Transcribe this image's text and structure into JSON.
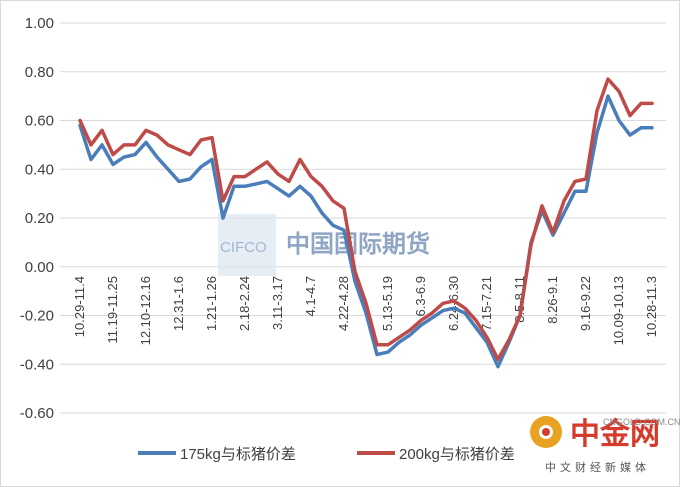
{
  "chart_data": {
    "type": "line",
    "title": "",
    "xlabel": "",
    "ylabel": "",
    "ylim": [
      -0.6,
      1.0
    ],
    "y_ticks": [
      "1.00",
      "0.80",
      "0.60",
      "0.40",
      "0.20",
      "0.00",
      "-0.20",
      "-0.40",
      "-0.60"
    ],
    "x_tick_labels": [
      "10.29-11.4",
      "11.19-11.25",
      "12.10-12.16",
      "12.31-1.6",
      "1.21-1.26",
      "2.18-2.24",
      "3.11-3.17",
      "4.1-4.7",
      "4.22-4.28",
      "5.13-5.19",
      "6.3-6.9",
      "6.24-6.30",
      "7.15-7.21",
      "8.5-8.11",
      "8.26-9.1",
      "9.16-9.22",
      "10.09-10.13",
      "10.28-11.3"
    ],
    "n_points": 53,
    "legend_position": "bottom",
    "series": [
      {
        "name": "175kg与标猪价差",
        "color": "#4a7ebb",
        "values": [
          0.58,
          0.44,
          0.5,
          0.42,
          0.45,
          0.46,
          0.51,
          0.45,
          0.4,
          0.35,
          0.36,
          0.41,
          0.44,
          0.2,
          0.33,
          0.33,
          0.34,
          0.35,
          0.32,
          0.29,
          0.33,
          0.29,
          0.22,
          0.17,
          0.15,
          -0.06,
          -0.19,
          -0.36,
          -0.35,
          -0.31,
          -0.28,
          -0.24,
          -0.21,
          -0.18,
          -0.17,
          -0.19,
          -0.25,
          -0.31,
          -0.41,
          -0.31,
          -0.2,
          0.1,
          0.23,
          0.13,
          0.22,
          0.31,
          0.31,
          0.55,
          0.7,
          0.6,
          0.54,
          0.57,
          0.57
        ]
      },
      {
        "name": "200kg与标猪价差",
        "color": "#be4b48",
        "values": [
          0.6,
          0.5,
          0.56,
          0.46,
          0.5,
          0.5,
          0.56,
          0.54,
          0.5,
          0.48,
          0.46,
          0.52,
          0.53,
          0.27,
          0.37,
          0.37,
          0.4,
          0.43,
          0.38,
          0.35,
          0.44,
          0.37,
          0.33,
          0.27,
          0.24,
          -0.02,
          -0.15,
          -0.32,
          -0.32,
          -0.29,
          -0.26,
          -0.22,
          -0.19,
          -0.15,
          -0.14,
          -0.17,
          -0.22,
          -0.29,
          -0.38,
          -0.3,
          -0.2,
          0.09,
          0.25,
          0.14,
          0.27,
          0.35,
          0.36,
          0.64,
          0.77,
          0.72,
          0.62,
          0.67,
          0.67
        ]
      }
    ]
  },
  "watermark": {
    "box_text": "CIFCO",
    "text": "中国国际期货"
  },
  "logo": {
    "name": "中金网",
    "subtitle": "中文财经新媒体",
    "url": "CNGOLD.COM.CN"
  }
}
